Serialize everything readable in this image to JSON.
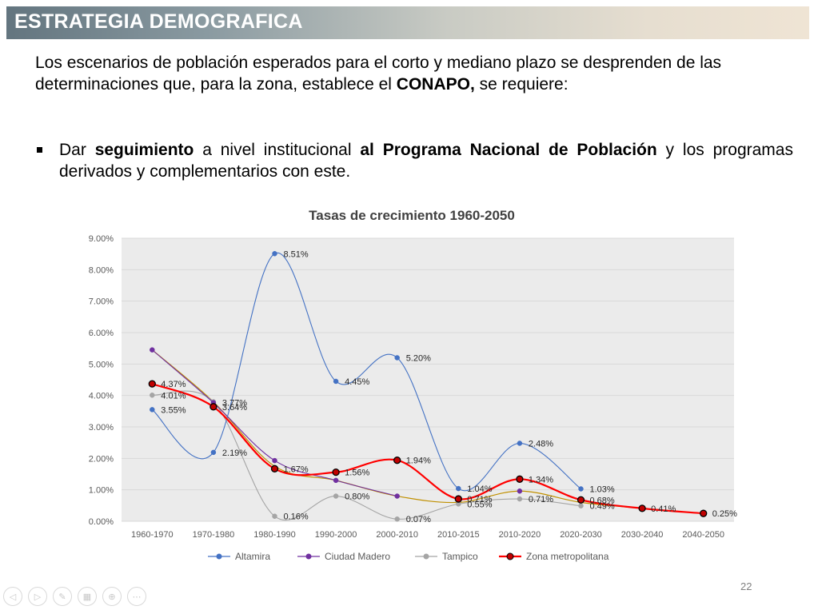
{
  "slide": {
    "title": "ESTRATEGIA DEMOGRAFICA",
    "intro_a": "Los escenarios de población esperados para el corto y mediano plazo se desprenden de las determinaciones que, para la zona, establece el ",
    "intro_bold": "CONAPO,",
    "intro_b": " se requiere:",
    "bullet_a": "Dar ",
    "bullet_bold1": "seguimiento",
    "bullet_b": " a nivel institucional ",
    "bullet_bold2": "al Programa Nacional de Población",
    "bullet_c": " y los programas derivados y complementarios con este.",
    "page_number": "22"
  },
  "chart_data": {
    "type": "line",
    "title": "Tasas de crecimiento 1960-2050",
    "categories": [
      "1960-1970",
      "1970-1980",
      "1980-1990",
      "1990-2000",
      "2000-2010",
      "2010-2015",
      "2010-2020",
      "2020-2030",
      "2030-2040",
      "2040-2050"
    ],
    "ylim": [
      0,
      9
    ],
    "yticks": [
      "0.00%",
      "1.00%",
      "2.00%",
      "3.00%",
      "4.00%",
      "5.00%",
      "6.00%",
      "7.00%",
      "8.00%",
      "9.00%"
    ],
    "grid": true,
    "smooth": true,
    "legend_position": "bottom",
    "series": [
      {
        "name": "Altamira",
        "color": "#4472c4",
        "values": [
          3.55,
          2.19,
          8.51,
          4.45,
          5.2,
          1.04,
          2.48,
          1.03,
          null,
          null
        ],
        "labels": [
          "3.55%",
          "2.19%",
          "8.51%",
          "4.45%",
          "5.20%",
          "1.04%",
          "2.48%",
          "1.03%",
          "",
          ""
        ]
      },
      {
        "name": "Ciudad Madero",
        "color": "#7030a0",
        "values": [
          5.45,
          3.77,
          1.93,
          1.3,
          0.8,
          null,
          0.96,
          null,
          null,
          null
        ],
        "labels": [
          "",
          "3.77%",
          "",
          "",
          "",
          "",
          "",
          "",
          "",
          ""
        ]
      },
      {
        "name": "Tampico",
        "color": "#a5a5a5",
        "values": [
          4.01,
          3.8,
          0.16,
          0.8,
          0.07,
          0.55,
          0.71,
          0.49,
          null,
          null
        ],
        "labels": [
          "4.01%",
          "",
          "0.16%",
          "0.80%",
          "0.07%",
          "0.55%",
          "0.71%",
          "0.49%",
          "",
          ""
        ]
      },
      {
        "name": "Zona metropolitana",
        "color": "#ff0000",
        "values": [
          4.37,
          3.64,
          1.67,
          1.56,
          1.94,
          0.71,
          1.34,
          0.68,
          0.41,
          0.25
        ],
        "labels": [
          "4.37%",
          "3.64%",
          "1.67%",
          "1.56%",
          "1.94%",
          "0.71%",
          "1.34%",
          "0.68%",
          "0.41%",
          "0.25%"
        ]
      }
    ],
    "extra_series": {
      "name": "",
      "color": "#c09000",
      "values": [
        5.45,
        3.8,
        1.75,
        1.3,
        0.8,
        0.6,
        0.96,
        0.6,
        0.41,
        0.25
      ]
    }
  },
  "nav": {
    "buttons": [
      {
        "name": "prev-icon",
        "glyph": "◁"
      },
      {
        "name": "next-icon",
        "glyph": "▷"
      },
      {
        "name": "pen-icon",
        "glyph": "✎"
      },
      {
        "name": "slides-icon",
        "glyph": "▦"
      },
      {
        "name": "zoom-icon",
        "glyph": "⊕"
      },
      {
        "name": "more-icon",
        "glyph": "⋯"
      }
    ]
  }
}
